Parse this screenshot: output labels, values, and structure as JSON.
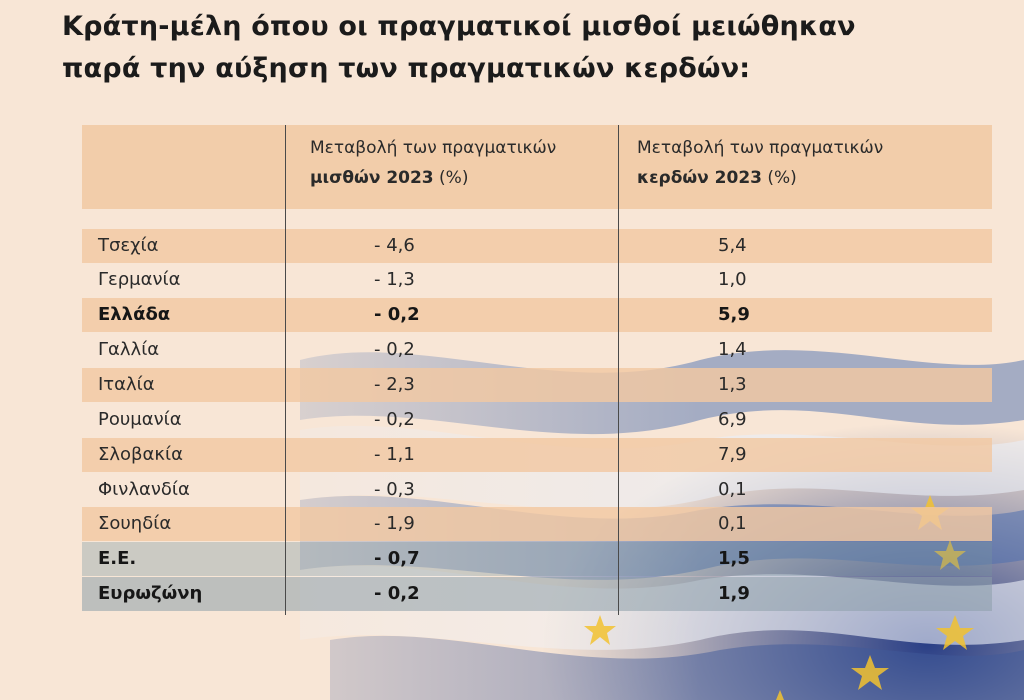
{
  "title_lines": [
    "Κράτη-μέλη όπου οι πραγματικοί μισθοί μειώθηκαν",
    "παρά την αύξηση των πραγματικών κερδών:"
  ],
  "headers": {
    "wage_line1": "Μεταβολή των πραγματικών",
    "wage_bold": "μισθών 2023",
    "wage_unit": " (%)",
    "earn_line1": "Μεταβολή των πραγματικών",
    "earn_bold": "κερδών 2023",
    "earn_unit": " (%)"
  },
  "rows": [
    {
      "country": "Τσεχία",
      "wage": "- 4,6",
      "earnings": "5,4"
    },
    {
      "country": "Γερμανία",
      "wage": "- 1,3",
      "earnings": "1,0"
    },
    {
      "country": "Ελλάδα",
      "wage": "- 0,2",
      "earnings": "5,9"
    },
    {
      "country": "Γαλλία",
      "wage": "- 0,2",
      "earnings": "1,4"
    },
    {
      "country": "Ιταλία",
      "wage": "- 2,3",
      "earnings": "1,3"
    },
    {
      "country": "Ρουμανία",
      "wage": "- 0,2",
      "earnings": "6,9"
    },
    {
      "country": "Σλοβακία",
      "wage": "- 1,1",
      "earnings": "7,9"
    },
    {
      "country": "Φινλανδία",
      "wage": "- 0,3",
      "earnings": "0,1"
    },
    {
      "country": "Σουηδία",
      "wage": "- 1,9",
      "earnings": "0,1"
    },
    {
      "country": "Ε.Ε.",
      "wage": "- 0,7",
      "earnings": "1,5"
    },
    {
      "country": "Ευρωζώνη",
      "wage": "- 0,2",
      "earnings": "1,9"
    }
  ],
  "chart_data": {
    "type": "table",
    "title": "Κράτη-μέλη όπου οι πραγματικοί μισθοί μειώθηκαν παρά την αύξηση των πραγματικών κερδών:",
    "columns": [
      "",
      "Μεταβολή των πραγματικών μισθών 2023 (%)",
      "Μεταβολή των πραγματικών κερδών 2023 (%)"
    ],
    "categories": [
      "Τσεχία",
      "Γερμανία",
      "Ελλάδα",
      "Γαλλία",
      "Ιταλία",
      "Ρουμανία",
      "Σλοβακία",
      "Φινλανδία",
      "Σουηδία",
      "Ε.Ε.",
      "Ευρωζώνη"
    ],
    "series": [
      {
        "name": "Μεταβολή των πραγματικών μισθών 2023 (%)",
        "values": [
          -4.6,
          -1.3,
          -0.2,
          -0.2,
          -2.3,
          -0.2,
          -1.1,
          -0.3,
          -1.9,
          -0.7,
          -0.2
        ]
      },
      {
        "name": "Μεταβολή των πραγματικών κερδών 2023 (%)",
        "values": [
          5.4,
          1.0,
          5.9,
          1.4,
          1.3,
          6.9,
          7.9,
          0.1,
          0.1,
          1.5,
          1.9
        ]
      }
    ],
    "bold_rows": [
      "Ελλάδα",
      "Ε.Ε.",
      "Ευρωζώνη"
    ]
  }
}
